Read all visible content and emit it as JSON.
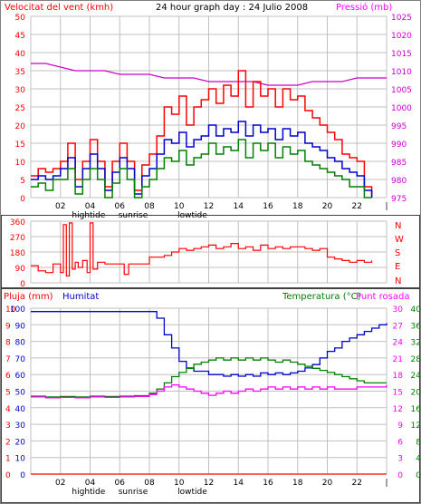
{
  "panel1": {
    "left_title": "Velocitat del vent (kmh)",
    "center_title": "24 hour graph day : 24 Julio 2008",
    "right_title": "Pressió (mb)"
  },
  "panel2": {
    "right_labels": [
      "N",
      "W",
      "S",
      "E",
      "N"
    ]
  },
  "panel3": {
    "rain_title": "Pluja (mm)",
    "humidity_title": "Humitat",
    "temperature_title": "Temperatura (°C)",
    "dewpoint_title": "Punt rosada"
  },
  "colors": {
    "wind_avg": "#ff0000",
    "wind_gust": "#ff0000",
    "wind_green": "#008000",
    "wind_blue": "#0000cc",
    "pressure": "#cc00cc",
    "direction": "#ff0000",
    "humidity": "#0000cc",
    "temperature": "#008000",
    "dewpoint": "#ff00ff",
    "rain": "#ff0000",
    "grid": "#c0c0c0"
  },
  "chart_data": [
    {
      "type": "line",
      "name": "wind-speed-and-pressure",
      "x_ticks": [
        "02",
        "04",
        "06",
        "08",
        "10",
        "12",
        "14",
        "16",
        "18",
        "20",
        "22",
        "|"
      ],
      "x_annotations": [
        {
          "label": "hightide",
          "x": 3.9
        },
        {
          "label": "sunrise",
          "x": 6.9
        },
        {
          "label": "lowtide",
          "x": 10.9
        }
      ],
      "y_left_ticks": [
        0,
        5,
        10,
        15,
        20,
        25,
        30,
        35,
        40,
        45,
        50
      ],
      "y_left_label": "Velocitat del vent (kmh)",
      "y_right_ticks": [
        975,
        980,
        985,
        990,
        995,
        1000,
        1005,
        1010,
        1015,
        1020,
        1025
      ],
      "y_right_label": "Pressió (mb)",
      "ylim_left": [
        0,
        50
      ],
      "ylim_right": [
        975,
        1025
      ],
      "xlim": [
        0,
        24
      ],
      "series": [
        {
          "name": "Pressió",
          "axis": "right",
          "x": [
            0,
            1,
            2,
            3,
            4,
            5,
            6,
            7,
            8,
            9,
            10,
            11,
            12,
            13,
            14,
            15,
            16,
            17,
            18,
            19,
            20,
            21,
            22,
            23,
            24
          ],
          "values": [
            1012,
            1012,
            1011,
            1010,
            1010,
            1010,
            1009,
            1009,
            1009,
            1008,
            1008,
            1008,
            1007,
            1007,
            1007,
            1007,
            1006,
            1006,
            1006,
            1007,
            1007,
            1007,
            1008,
            1008,
            1008
          ]
        },
        {
          "name": "gust",
          "axis": "left",
          "x": [
            0,
            0.5,
            1,
            1.5,
            2,
            2.5,
            3,
            3.5,
            4,
            4.5,
            5,
            5.5,
            6,
            6.5,
            7,
            7.5,
            8,
            8.5,
            9,
            9.5,
            10,
            10.5,
            11,
            11.5,
            12,
            12.5,
            13,
            13.5,
            14,
            14.5,
            15,
            15.5,
            16,
            16.5,
            17,
            17.5,
            18,
            18.5,
            19,
            19.5,
            20,
            20.5,
            21,
            21.5,
            22,
            22.5,
            23
          ],
          "values": [
            6,
            8,
            7,
            8,
            10,
            15,
            5,
            10,
            16,
            10,
            3,
            10,
            15,
            10,
            2,
            9,
            12,
            17,
            25,
            23,
            28,
            20,
            25,
            27,
            30,
            26,
            31,
            28,
            35,
            25,
            32,
            28,
            30,
            25,
            30,
            27,
            28,
            24,
            22,
            20,
            18,
            16,
            12,
            11,
            10,
            3,
            0
          ]
        },
        {
          "name": "avg",
          "axis": "left",
          "x": [
            0,
            0.5,
            1,
            1.5,
            2,
            2.5,
            3,
            3.5,
            4,
            4.5,
            5,
            5.5,
            6,
            6.5,
            7,
            7.5,
            8,
            8.5,
            9,
            9.5,
            10,
            10.5,
            11,
            11.5,
            12,
            12.5,
            13,
            13.5,
            14,
            14.5,
            15,
            15.5,
            16,
            16.5,
            17,
            17.5,
            18,
            18.5,
            19,
            19.5,
            20,
            20.5,
            21,
            21.5,
            22,
            22.5,
            23
          ],
          "values": [
            5,
            6,
            5,
            6,
            8,
            11,
            3,
            8,
            12,
            8,
            2,
            7,
            11,
            8,
            1,
            6,
            8,
            12,
            16,
            15,
            18,
            14,
            16,
            17,
            20,
            17,
            19,
            18,
            21,
            17,
            20,
            18,
            19,
            16,
            19,
            17,
            18,
            15,
            14,
            13,
            11,
            10,
            8,
            7,
            6,
            2,
            0
          ]
        },
        {
          "name": "min",
          "axis": "left",
          "x": [
            0,
            0.5,
            1,
            1.5,
            2,
            2.5,
            3,
            3.5,
            4,
            4.5,
            5,
            5.5,
            6,
            6.5,
            7,
            7.5,
            8,
            8.5,
            9,
            9.5,
            10,
            10.5,
            11,
            11.5,
            12,
            12.5,
            13,
            13.5,
            14,
            14.5,
            15,
            15.5,
            16,
            16.5,
            17,
            17.5,
            18,
            18.5,
            19,
            19.5,
            20,
            20.5,
            21,
            21.5,
            22,
            22.5,
            23
          ],
          "values": [
            3,
            4,
            2,
            5,
            5,
            8,
            1,
            5,
            8,
            5,
            0,
            4,
            8,
            5,
            0,
            3,
            5,
            8,
            11,
            10,
            13,
            9,
            11,
            12,
            15,
            12,
            14,
            13,
            16,
            11,
            15,
            13,
            15,
            11,
            14,
            12,
            13,
            10,
            9,
            8,
            7,
            6,
            5,
            3,
            3,
            0,
            0
          ]
        }
      ]
    },
    {
      "type": "line",
      "name": "wind-direction",
      "x_ticks": [],
      "y_left_ticks": [
        0,
        90,
        180,
        270,
        360
      ],
      "ylim": [
        0,
        360
      ],
      "xlim": [
        0,
        24
      ],
      "series": [
        {
          "name": "direction",
          "x": [
            0,
            0.5,
            1,
            1.5,
            2,
            2.2,
            2.4,
            2.6,
            2.8,
            3,
            3.2,
            3.5,
            3.8,
            4,
            4.2,
            4.5,
            5,
            5.5,
            6,
            6.3,
            6.6,
            7,
            7.5,
            8,
            8.5,
            9,
            9.5,
            10,
            10.5,
            11,
            11.5,
            12,
            12.5,
            13,
            13.5,
            14,
            14.5,
            15,
            15.5,
            16,
            16.5,
            17,
            17.5,
            18,
            18.5,
            19,
            19.5,
            20,
            20.5,
            21,
            21.5,
            22,
            22.5,
            23
          ],
          "values": [
            100,
            70,
            60,
            110,
            60,
            340,
            40,
            350,
            80,
            120,
            90,
            130,
            60,
            350,
            80,
            120,
            110,
            110,
            110,
            50,
            110,
            110,
            110,
            150,
            150,
            160,
            180,
            200,
            190,
            200,
            210,
            220,
            200,
            210,
            230,
            200,
            210,
            190,
            220,
            200,
            210,
            200,
            210,
            210,
            200,
            190,
            200,
            150,
            140,
            130,
            120,
            130,
            120,
            130
          ]
        }
      ]
    },
    {
      "type": "line",
      "name": "humidity-temperature-rain",
      "x_ticks": [
        "02",
        "04",
        "06",
        "08",
        "10",
        "12",
        "14",
        "16",
        "18",
        "20",
        "22",
        "|"
      ],
      "x_annotations": [
        {
          "label": "hightide",
          "x": 3.9
        },
        {
          "label": "sunrise",
          "x": 6.9
        },
        {
          "label": "lowtide",
          "x": 10.9
        }
      ],
      "y_rain_ticks": [
        0,
        1,
        2,
        3,
        4,
        5,
        6,
        7,
        8,
        9,
        10
      ],
      "y_hum_ticks": [
        0,
        12,
        24,
        36,
        48,
        60,
        72,
        84,
        96,
        108,
        120
      ],
      "y_left_ticks_display": [
        "0",
        "1",
        "2",
        "3",
        "4",
        "5",
        "6",
        "7",
        "8",
        "9",
        "10"
      ],
      "y_left_hum_display": [
        "100",
        "90",
        "80",
        "70",
        "60",
        "50",
        "40",
        "30",
        "20",
        "10",
        "0"
      ],
      "y_mid_ticks": [
        0,
        3,
        6,
        9,
        12,
        15,
        18,
        21,
        24,
        27,
        30
      ],
      "y_right_ticks": [
        0,
        4,
        8,
        12,
        16,
        20,
        24,
        28,
        32,
        36,
        40
      ],
      "ylim_humidity": [
        0,
        100
      ],
      "ylim_temperature": [
        0,
        40
      ],
      "ylim_rain": [
        0,
        30
      ],
      "xlim": [
        0,
        24
      ],
      "series": [
        {
          "name": "Humitat",
          "x": [
            0,
            1,
            2,
            3,
            4,
            5,
            6,
            7,
            8,
            8.5,
            9,
            9.5,
            10,
            10.5,
            11,
            11.5,
            12,
            12.5,
            13,
            13.5,
            14,
            14.5,
            15,
            15.5,
            16,
            16.5,
            17,
            17.5,
            18,
            18.5,
            19,
            19.5,
            20,
            20.5,
            21,
            21.5,
            22,
            22.5,
            23,
            23.5,
            24
          ],
          "values": [
            98,
            98,
            98,
            98,
            98,
            98,
            98,
            98,
            98,
            94,
            84,
            76,
            68,
            64,
            62,
            62,
            60,
            60,
            59,
            60,
            59,
            60,
            59,
            61,
            60,
            61,
            60,
            61,
            62,
            64,
            66,
            70,
            74,
            76,
            80,
            82,
            84,
            86,
            88,
            90,
            91
          ]
        },
        {
          "name": "Temperatura",
          "x": [
            0,
            1,
            2,
            3,
            4,
            5,
            6,
            7,
            8,
            8.5,
            9,
            9.5,
            10,
            10.5,
            11,
            11.5,
            12,
            12.5,
            13,
            13.5,
            14,
            14.5,
            15,
            15.5,
            16,
            16.5,
            17,
            17.5,
            18,
            18.5,
            19,
            19.5,
            20,
            20.5,
            21,
            21.5,
            22,
            22.5,
            23,
            23.5,
            24
          ],
          "values": [
            18.8,
            18.6,
            18.7,
            18.6,
            18.8,
            18.7,
            18.8,
            18.9,
            19.5,
            20.5,
            22,
            23.5,
            24.5,
            25.5,
            26.5,
            27,
            27.5,
            28,
            27.5,
            28,
            27.5,
            28,
            27.5,
            28,
            27.5,
            27,
            27.5,
            27,
            26.5,
            26,
            25.5,
            25,
            24.5,
            24,
            23.5,
            23,
            22.5,
            22,
            22,
            22,
            22
          ]
        },
        {
          "name": "Punt rosada",
          "x": [
            0,
            1,
            2,
            3,
            4,
            5,
            6,
            7,
            8,
            8.5,
            9,
            9.5,
            10,
            10.5,
            11,
            11.5,
            12,
            12.5,
            13,
            13.5,
            14,
            14.5,
            15,
            15.5,
            16,
            16.5,
            17,
            17.5,
            18,
            18.5,
            19,
            19.5,
            20,
            20.5,
            21,
            21.5,
            22,
            22.5,
            23,
            23.5,
            24
          ],
          "values": [
            18.6,
            18.4,
            18.5,
            18.4,
            18.6,
            18.5,
            18.6,
            18.7,
            19.2,
            20,
            21,
            21.5,
            21,
            20.5,
            20,
            19.5,
            19,
            19.5,
            20,
            19.5,
            20,
            20.5,
            20,
            20.5,
            21,
            20.5,
            21,
            20.5,
            21,
            20.5,
            21,
            20.5,
            21,
            20.5,
            20.5,
            20.5,
            21,
            21,
            21,
            21,
            21.5
          ]
        },
        {
          "name": "Pluja",
          "x": [
            0,
            24
          ],
          "values": [
            0,
            0
          ]
        }
      ]
    }
  ]
}
